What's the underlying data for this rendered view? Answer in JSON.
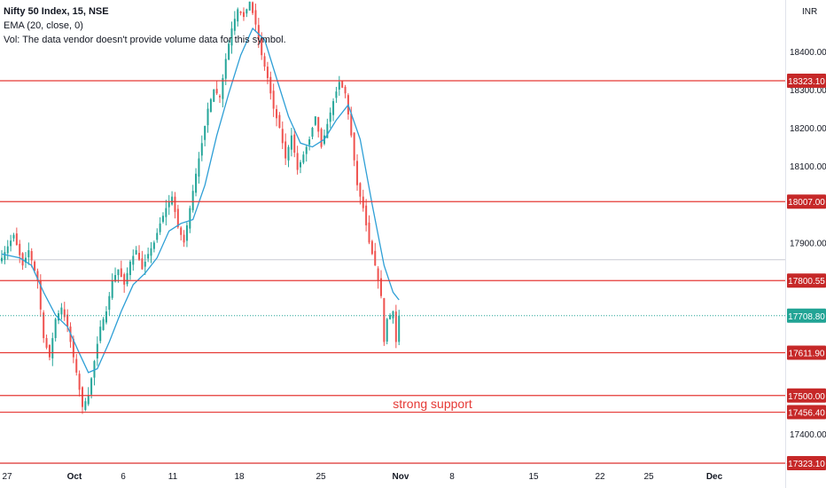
{
  "legend": {
    "symbol": "Nifty 50 Index, 15, NSE",
    "ema": "EMA (20, close, 0)",
    "vol": "Vol: The data vendor doesn't provide volume data for this symbol."
  },
  "chart_data": {
    "type": "candlestick",
    "currency_label": "INR",
    "y_ticks": [
      18400,
      18300,
      18200,
      18100,
      17900,
      17400
    ],
    "y_range": [
      17330,
      18520
    ],
    "x_labels": [
      "27",
      "Oct",
      "6",
      "11",
      "18",
      "25",
      "Nov",
      "8",
      "15",
      "22",
      "25",
      "Dec"
    ],
    "horizontal_levels": [
      {
        "value": 18323.1,
        "label": "18323.10",
        "style": "resistance"
      },
      {
        "value": 18007.0,
        "label": "18007.00",
        "style": "resistance"
      },
      {
        "value": 17800.55,
        "label": "17800.55",
        "style": "resistance"
      },
      {
        "value": 17611.9,
        "label": "17611.90",
        "style": "support"
      },
      {
        "value": 17500.0,
        "label": "17500.00",
        "style": "support"
      },
      {
        "value": 17456.4,
        "label": "17456.40",
        "style": "support"
      },
      {
        "value": 17323.1,
        "label": "17323.10",
        "style": "support"
      }
    ],
    "last_price": {
      "value": 17708.8,
      "label": "17708.80"
    },
    "prev_close_line": 17855,
    "annotation": {
      "text": "strong support",
      "value": 17478
    },
    "price_path": [
      [
        0,
        17860
      ],
      [
        4,
        17920
      ],
      [
        7,
        17840
      ],
      [
        9,
        17880
      ],
      [
        12,
        17800
      ],
      [
        14,
        17650
      ],
      [
        16,
        17600
      ],
      [
        18,
        17700
      ],
      [
        20,
        17730
      ],
      [
        22,
        17680
      ],
      [
        25,
        17560
      ],
      [
        27,
        17470
      ],
      [
        29,
        17500
      ],
      [
        31,
        17590
      ],
      [
        33,
        17680
      ],
      [
        35,
        17720
      ],
      [
        37,
        17800
      ],
      [
        39,
        17830
      ],
      [
        41,
        17790
      ],
      [
        43,
        17850
      ],
      [
        45,
        17880
      ],
      [
        47,
        17830
      ],
      [
        49,
        17870
      ],
      [
        51,
        17900
      ],
      [
        53,
        17950
      ],
      [
        55,
        17990
      ],
      [
        57,
        18020
      ],
      [
        59,
        17940
      ],
      [
        61,
        17900
      ],
      [
        63,
        17990
      ],
      [
        65,
        18080
      ],
      [
        67,
        18160
      ],
      [
        69,
        18250
      ],
      [
        71,
        18300
      ],
      [
        73,
        18280
      ],
      [
        75,
        18380
      ],
      [
        77,
        18460
      ],
      [
        79,
        18510
      ],
      [
        81,
        18490
      ],
      [
        83,
        18530
      ],
      [
        85,
        18470
      ],
      [
        87,
        18390
      ],
      [
        89,
        18330
      ],
      [
        91,
        18250
      ],
      [
        93,
        18200
      ],
      [
        95,
        18120
      ],
      [
        97,
        18180
      ],
      [
        99,
        18090
      ],
      [
        101,
        18130
      ],
      [
        103,
        18170
      ],
      [
        105,
        18230
      ],
      [
        107,
        18150
      ],
      [
        109,
        18210
      ],
      [
        111,
        18270
      ],
      [
        113,
        18320
      ],
      [
        115,
        18290
      ],
      [
        117,
        18180
      ],
      [
        119,
        18050
      ],
      [
        121,
        17990
      ],
      [
        123,
        17900
      ],
      [
        125,
        17840
      ],
      [
        127,
        17760
      ],
      [
        128,
        17640
      ],
      [
        129,
        17700
      ],
      [
        131,
        17720
      ],
      [
        132,
        17640
      ],
      [
        133,
        17708.8
      ]
    ],
    "ema_path": [
      [
        0,
        17870
      ],
      [
        6,
        17860
      ],
      [
        10,
        17840
      ],
      [
        14,
        17770
      ],
      [
        18,
        17710
      ],
      [
        22,
        17680
      ],
      [
        26,
        17610
      ],
      [
        29,
        17560
      ],
      [
        32,
        17570
      ],
      [
        36,
        17640
      ],
      [
        40,
        17720
      ],
      [
        44,
        17790
      ],
      [
        48,
        17820
      ],
      [
        52,
        17860
      ],
      [
        56,
        17930
      ],
      [
        60,
        17950
      ],
      [
        64,
        17960
      ],
      [
        68,
        18050
      ],
      [
        72,
        18180
      ],
      [
        76,
        18290
      ],
      [
        80,
        18390
      ],
      [
        84,
        18460
      ],
      [
        88,
        18430
      ],
      [
        92,
        18330
      ],
      [
        96,
        18230
      ],
      [
        100,
        18160
      ],
      [
        104,
        18150
      ],
      [
        108,
        18170
      ],
      [
        112,
        18220
      ],
      [
        116,
        18260
      ],
      [
        120,
        18170
      ],
      [
        124,
        18000
      ],
      [
        128,
        17840
      ],
      [
        131,
        17770
      ],
      [
        133,
        17750
      ]
    ],
    "colors": {
      "up": "#26a69a",
      "down": "#ef5350",
      "ema": "#2e9fd6",
      "level": "#e53935",
      "last_price": "#22a495",
      "axis_text": "#131722",
      "axis_border": "#e0e3eb"
    }
  }
}
